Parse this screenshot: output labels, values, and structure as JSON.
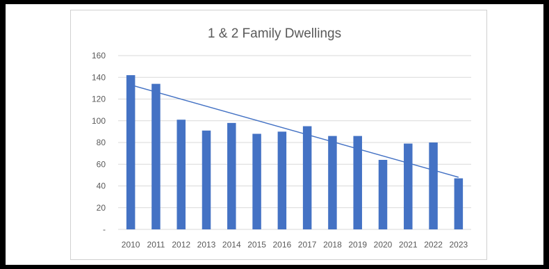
{
  "chart_data": {
    "type": "bar",
    "title": "1 & 2 Family Dwellings",
    "categories": [
      "2010",
      "2011",
      "2012",
      "2013",
      "2014",
      "2015",
      "2016",
      "2017",
      "2018",
      "2019",
      "2020",
      "2021",
      "2022",
      "2023"
    ],
    "series": [
      {
        "values": [
          142,
          134,
          101,
          91,
          98,
          88,
          90,
          95,
          86,
          86,
          64,
          79,
          80,
          47
        ],
        "color": "#4472C4"
      }
    ],
    "trendline": {
      "type": "linear",
      "start": 133,
      "end": 48,
      "color": "#4472C4"
    },
    "ylim": [
      0,
      160
    ],
    "yticks": [
      {
        "value": 0,
        "label": "-"
      },
      {
        "value": 20,
        "label": "20"
      },
      {
        "value": 40,
        "label": "40"
      },
      {
        "value": 60,
        "label": "60"
      },
      {
        "value": 80,
        "label": "80"
      },
      {
        "value": 100,
        "label": "100"
      },
      {
        "value": 120,
        "label": "120"
      },
      {
        "value": 140,
        "label": "140"
      },
      {
        "value": 160,
        "label": "160"
      }
    ],
    "grid": true,
    "legend": "none"
  }
}
